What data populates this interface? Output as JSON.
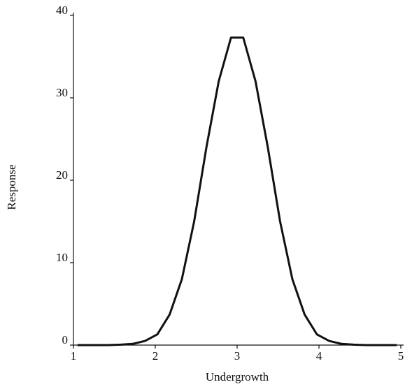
{
  "chart_data": {
    "type": "line",
    "x_label": "Undergrowth",
    "y_label": "Response",
    "x": [
      1.05,
      1.275,
      1.425,
      1.575,
      1.725,
      1.875,
      2.025,
      2.175,
      2.325,
      2.475,
      2.625,
      2.775,
      2.925,
      3.075,
      3.225,
      3.375,
      3.525,
      3.675,
      3.825,
      3.975,
      4.125,
      4.275,
      4.425,
      4.575,
      4.725,
      4.95
    ],
    "values": [
      0,
      0,
      0,
      0.05,
      0.15,
      0.5,
      1.3,
      3.7,
      8,
      15,
      24,
      32,
      37.3,
      37.3,
      32,
      24,
      15,
      8,
      3.7,
      1.3,
      0.5,
      0.15,
      0.05,
      0,
      0,
      0
    ],
    "color": "#111111",
    "xlim": [
      1,
      5
    ],
    "xticks": [
      1,
      2,
      3,
      4,
      5
    ],
    "ylim": [
      0,
      40
    ],
    "yticks": [
      0,
      10,
      20,
      30,
      40
    ],
    "grid": false
  }
}
